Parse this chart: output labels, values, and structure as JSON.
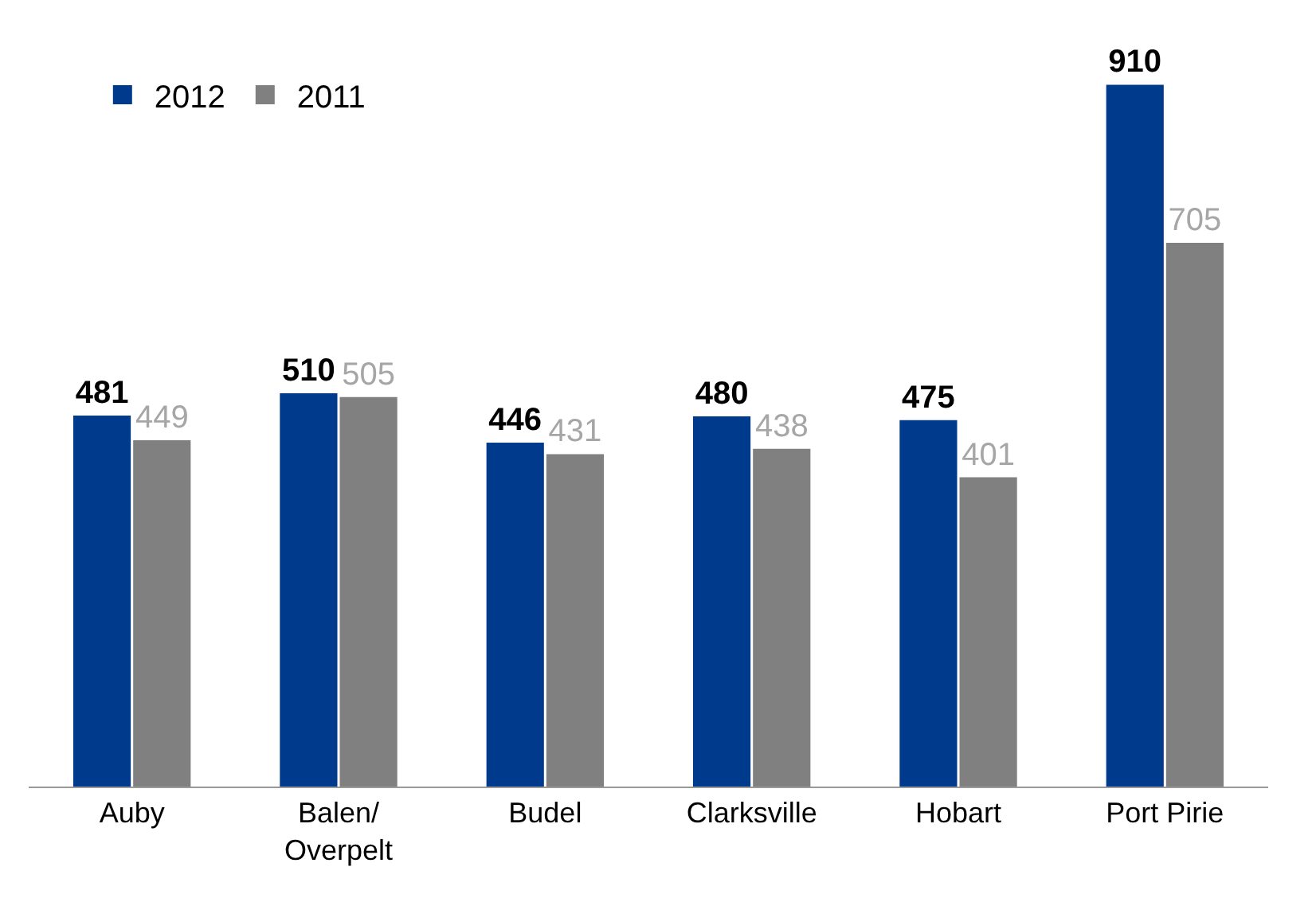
{
  "chart_data": {
    "type": "bar",
    "categories": [
      "Auby",
      "Balen/Overpelt",
      "Budel",
      "Clarksville",
      "Hobart",
      "Port Pirie"
    ],
    "series": [
      {
        "name": "2012",
        "color": "#003a8c",
        "values": [
          481,
          510,
          446,
          480,
          475,
          910
        ]
      },
      {
        "name": "2011",
        "color": "#808080",
        "values": [
          449,
          505,
          431,
          438,
          401,
          705
        ]
      }
    ],
    "data_labels": true,
    "legend": "top left",
    "grid": false
  }
}
